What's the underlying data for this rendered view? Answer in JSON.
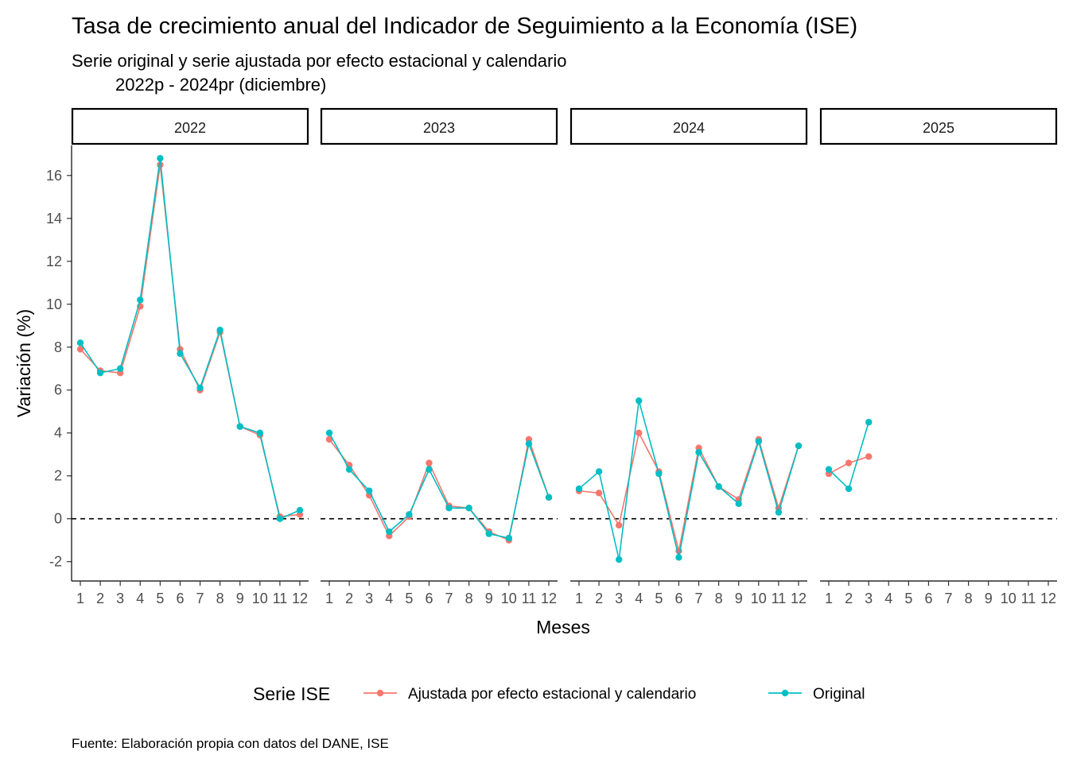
{
  "chart_data": {
    "type": "line",
    "title": "Tasa de crecimiento anual del Indicador de Seguimiento a la Economía (ISE)",
    "subtitle_line1": "Serie original y serie ajustada por efecto estacional y calendario",
    "subtitle_line2": "2022p - 2024pr (diciembre)",
    "xlabel": "Meses",
    "ylabel": "Variación (%)",
    "caption": "Fuente: Elaboración propia con datos del DANE, ISE",
    "ylim": [
      -2.9,
      17.4
    ],
    "yticks": [
      -2,
      0,
      2,
      4,
      6,
      8,
      10,
      12,
      14,
      16
    ],
    "ytick_labels": [
      "-2",
      "0",
      "2",
      "4",
      "6",
      "8",
      "10",
      "12",
      "14",
      "16"
    ],
    "months": [
      "1",
      "2",
      "3",
      "4",
      "5",
      "6",
      "7",
      "8",
      "9",
      "10",
      "11",
      "12"
    ],
    "reference_line": 0,
    "legend": {
      "title": "Serie ISE",
      "position": "bottom"
    },
    "facets": [
      {
        "label": "2022",
        "series": [
          {
            "name": "Ajustada por efecto estacional y calendario",
            "color": "#F8766D",
            "values": [
              7.9,
              6.9,
              6.8,
              9.9,
              16.5,
              7.9,
              6.0,
              8.7,
              4.3,
              3.9,
              0.1,
              0.2
            ]
          },
          {
            "name": "Original",
            "color": "#00BFC4",
            "values": [
              8.2,
              6.8,
              7.0,
              10.2,
              16.8,
              7.7,
              6.1,
              8.8,
              4.3,
              4.0,
              0.0,
              0.4
            ]
          }
        ]
      },
      {
        "label": "2023",
        "series": [
          {
            "name": "Ajustada por efecto estacional y calendario",
            "color": "#F8766D",
            "values": [
              3.7,
              2.5,
              1.1,
              -0.8,
              0.1,
              2.6,
              0.6,
              0.5,
              -0.6,
              -1.0,
              3.7,
              1.0
            ]
          },
          {
            "name": "Original",
            "color": "#00BFC4",
            "values": [
              4.0,
              2.3,
              1.3,
              -0.6,
              0.2,
              2.3,
              0.5,
              0.5,
              -0.7,
              -0.9,
              3.5,
              1.0
            ]
          }
        ]
      },
      {
        "label": "2024",
        "series": [
          {
            "name": "Ajustada por efecto estacional y calendario",
            "color": "#F8766D",
            "values": [
              1.3,
              1.2,
              -0.3,
              4.0,
              2.2,
              -1.5,
              3.3,
              1.5,
              0.9,
              3.7,
              0.5,
              3.4
            ]
          },
          {
            "name": "Original",
            "color": "#00BFC4",
            "values": [
              1.4,
              2.2,
              -1.9,
              5.5,
              2.1,
              -1.8,
              3.1,
              1.5,
              0.7,
              3.6,
              0.3,
              3.4
            ]
          }
        ]
      },
      {
        "label": "2025",
        "series": [
          {
            "name": "Ajustada por efecto estacional y calendario",
            "color": "#F8766D",
            "values": [
              2.1,
              2.6,
              2.9,
              null,
              null,
              null,
              null,
              null,
              null,
              null,
              null,
              null
            ]
          },
          {
            "name": "Original",
            "color": "#00BFC4",
            "values": [
              2.3,
              1.4,
              4.5,
              null,
              null,
              null,
              null,
              null,
              null,
              null,
              null,
              null
            ]
          }
        ]
      }
    ]
  }
}
